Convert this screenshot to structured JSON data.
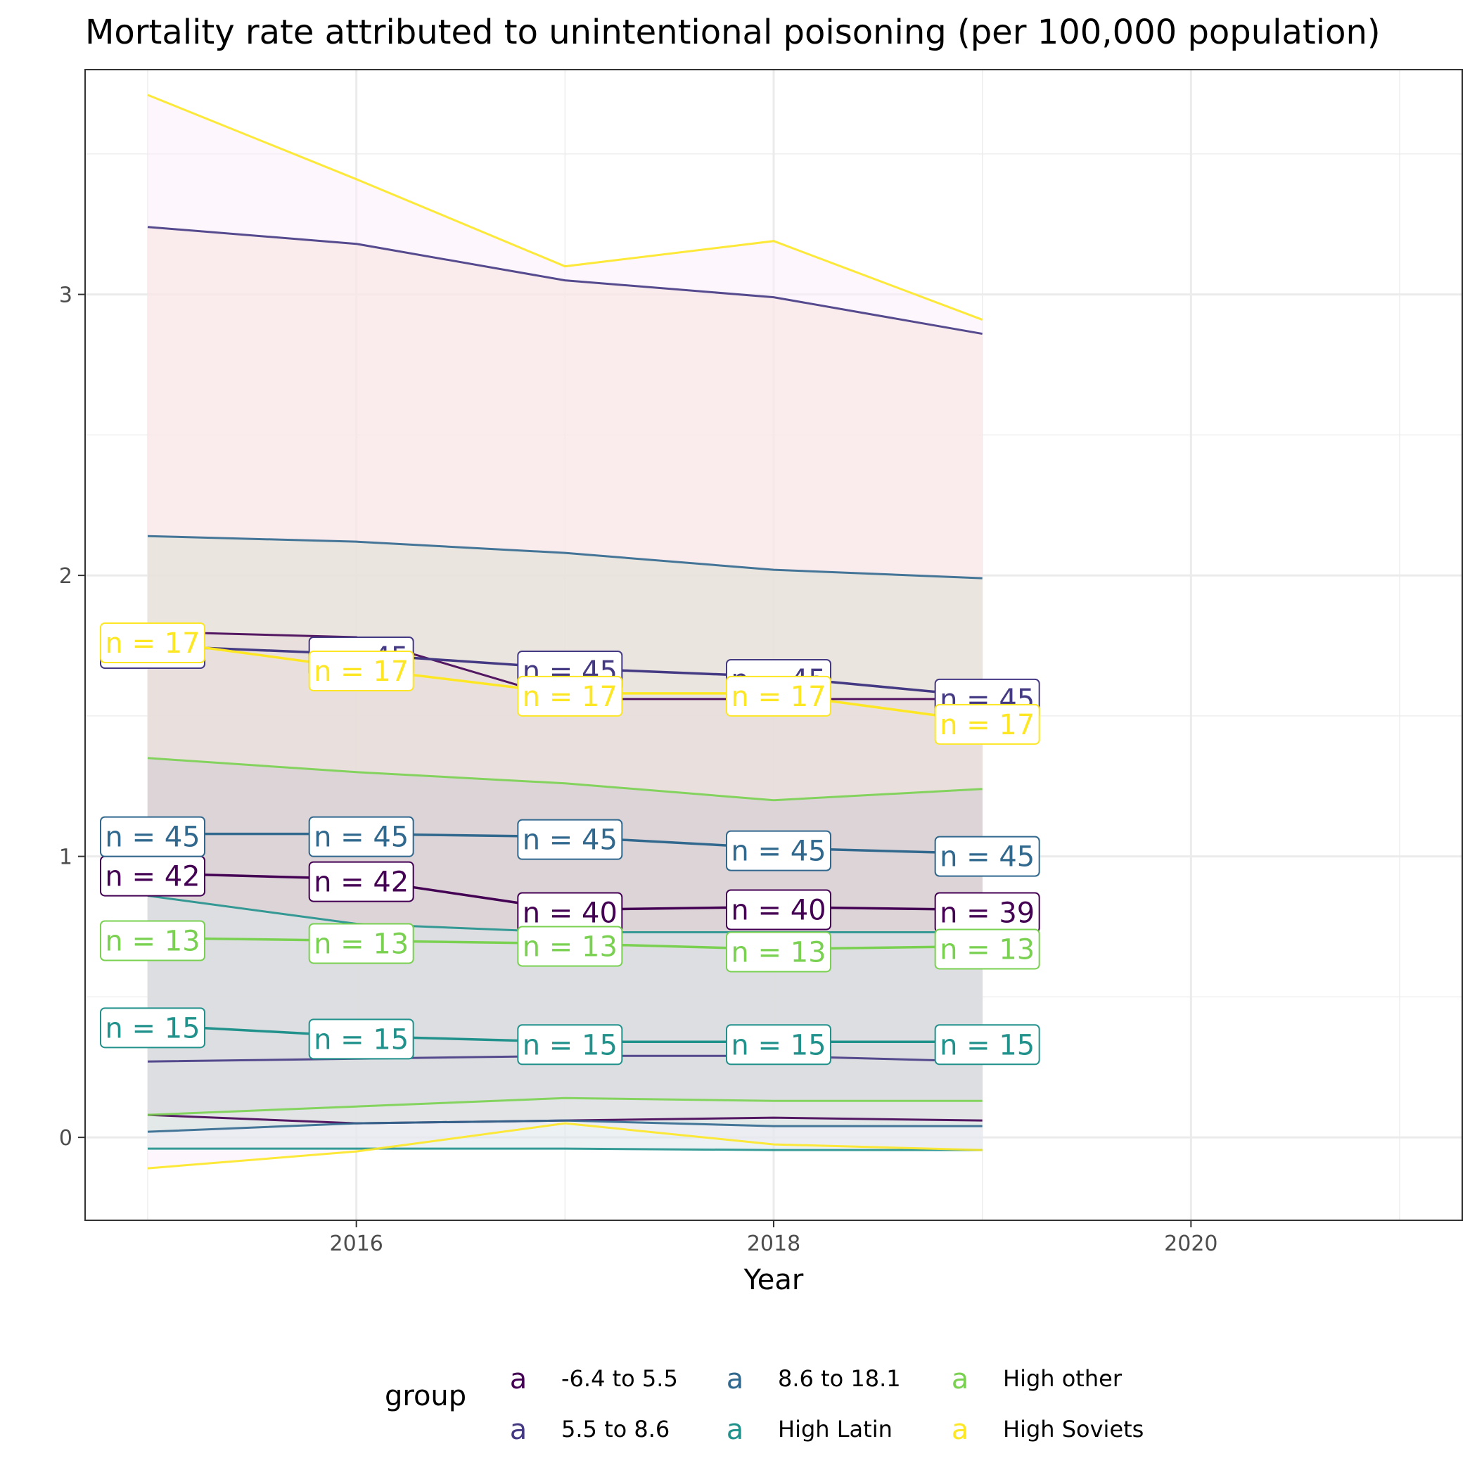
{
  "chart_data": {
    "type": "line",
    "title": "Mortality rate attributed to unintentional poisoning (per 100,000 population)",
    "xlabel": "Year",
    "ylabel": "",
    "xlim": [
      2014.7,
      2021.3
    ],
    "ylim": [
      -0.295,
      3.8
    ],
    "x_ticks": [
      2016,
      2018,
      2020
    ],
    "y_ticks": [
      0,
      1,
      2,
      3
    ],
    "grid": true,
    "legend": {
      "title": "group",
      "position": "bottom",
      "key_glyph": "a"
    },
    "x": [
      2015,
      2016,
      2017,
      2018,
      2019
    ],
    "series": [
      {
        "name": "-6.4 to 5.5",
        "color": "#440154",
        "mean": [
          0.94,
          0.92,
          0.81,
          0.82,
          0.81
        ],
        "lower": [
          0.08,
          0.05,
          0.06,
          0.07,
          0.06
        ],
        "upper": [
          1.8,
          1.78,
          1.56,
          1.56,
          1.56
        ],
        "n": [
          42,
          42,
          40,
          40,
          39
        ],
        "band_fill": "#f3d6e4"
      },
      {
        "name": "5.5 to 8.6",
        "color": "#443983",
        "mean": [
          1.75,
          1.72,
          1.67,
          1.64,
          1.57
        ],
        "lower": [
          0.27,
          0.28,
          0.29,
          0.29,
          0.27
        ],
        "upper": [
          3.24,
          3.18,
          3.05,
          2.99,
          2.86
        ],
        "n": [
          45,
          45,
          45,
          45,
          45
        ],
        "band_fill": "#f7e1e0"
      },
      {
        "name": "8.6 to 18.1",
        "color": "#31688e",
        "mean": [
          1.08,
          1.08,
          1.07,
          1.03,
          1.01
        ],
        "lower": [
          0.02,
          0.05,
          0.06,
          0.04,
          0.04
        ],
        "upper": [
          2.14,
          2.12,
          2.08,
          2.02,
          1.99
        ],
        "n": [
          45,
          45,
          45,
          45,
          45
        ],
        "band_fill": "#dfe0d4"
      },
      {
        "name": "High Latin",
        "color": "#21918c",
        "mean": [
          0.4,
          0.36,
          0.34,
          0.34,
          0.34
        ],
        "lower": [
          -0.04,
          -0.04,
          -0.04,
          -0.045,
          -0.045
        ],
        "upper": [
          0.86,
          0.76,
          0.73,
          0.73,
          0.73
        ],
        "n": [
          15,
          15,
          15,
          15,
          15
        ],
        "band_fill": "#dce6ea"
      },
      {
        "name": "High other",
        "color": "#7ad151",
        "mean": [
          0.71,
          0.7,
          0.69,
          0.67,
          0.68
        ],
        "lower": [
          0.08,
          0.11,
          0.14,
          0.13,
          0.13
        ],
        "upper": [
          1.35,
          1.3,
          1.26,
          1.2,
          1.24
        ],
        "n": [
          13,
          13,
          13,
          13,
          13
        ],
        "band_fill": "#d2cad2"
      },
      {
        "name": "High Soviets",
        "color": "#fde725",
        "mean": [
          1.77,
          1.67,
          1.58,
          1.58,
          1.48
        ],
        "lower": [
          -0.11,
          -0.05,
          0.05,
          -0.025,
          -0.045
        ],
        "upper": [
          3.71,
          3.41,
          3.1,
          3.19,
          2.91
        ],
        "n": [
          17,
          17,
          17,
          17,
          17
        ],
        "band_fill": "#fbeefa"
      }
    ]
  }
}
